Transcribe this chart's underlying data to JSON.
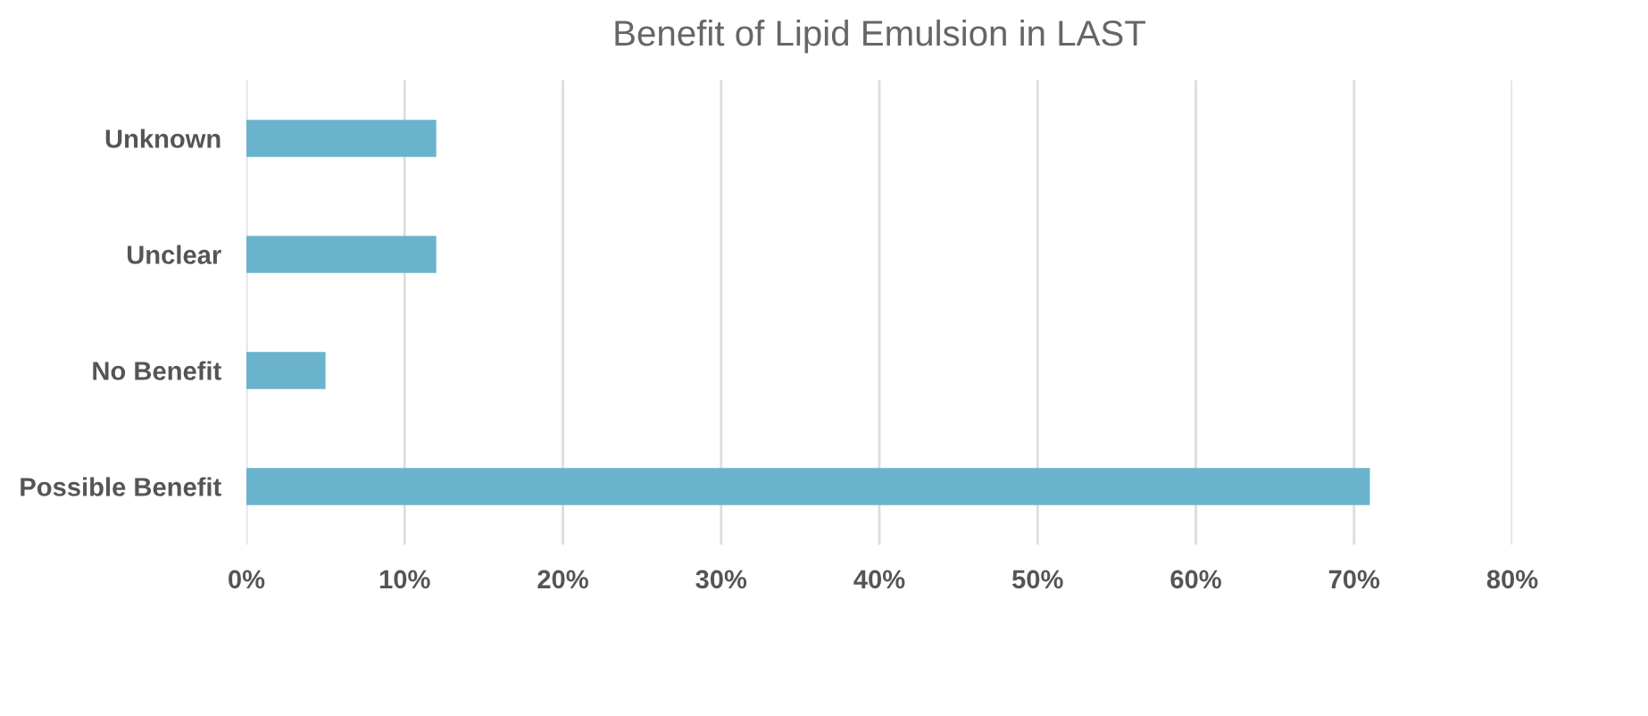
{
  "chart_data": {
    "type": "bar",
    "title": "Benefit of Lipid Emulsion in LAST",
    "orientation": "horizontal",
    "categories": [
      "Unknown",
      "Unclear",
      "No Benefit",
      "Possible Benefit"
    ],
    "values": [
      12,
      12,
      5,
      71
    ],
    "color": "#6ab3cc",
    "xlim": [
      0,
      80
    ],
    "xticks": [
      {
        "value": 0,
        "label": "0%"
      },
      {
        "value": 10,
        "label": "10%"
      },
      {
        "value": 20,
        "label": "20%"
      },
      {
        "value": 30,
        "label": "30%"
      },
      {
        "value": 40,
        "label": "40%"
      },
      {
        "value": 50,
        "label": "50%"
      },
      {
        "value": 60,
        "label": "60%"
      },
      {
        "value": 70,
        "label": "70%"
      },
      {
        "value": 80,
        "label": "80%"
      }
    ],
    "grid": "x",
    "legend": false
  }
}
